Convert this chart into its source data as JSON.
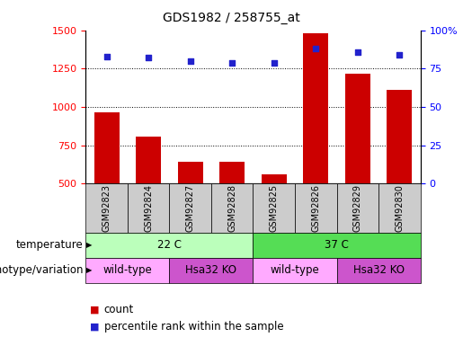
{
  "title": "GDS1982 / 258755_at",
  "samples": [
    "GSM92823",
    "GSM92824",
    "GSM92827",
    "GSM92828",
    "GSM92825",
    "GSM92826",
    "GSM92829",
    "GSM92830"
  ],
  "counts": [
    965,
    805,
    640,
    645,
    560,
    1480,
    1215,
    1110
  ],
  "percentiles": [
    83,
    82,
    80,
    79,
    79,
    88,
    86,
    84
  ],
  "ylim_left": [
    500,
    1500
  ],
  "ylim_right": [
    0,
    100
  ],
  "yticks_left": [
    500,
    750,
    1000,
    1250,
    1500
  ],
  "yticks_right": [
    0,
    25,
    50,
    75,
    100
  ],
  "ytick_labels_right": [
    "0",
    "25",
    "50",
    "75",
    "100%"
  ],
  "bar_color": "#cc0000",
  "scatter_color": "#2222cc",
  "hgrid_values": [
    750,
    1000,
    1250
  ],
  "temperature_groups": [
    {
      "label": "22 C",
      "start": 0,
      "end": 4,
      "color": "#bbffbb"
    },
    {
      "label": "37 C",
      "start": 4,
      "end": 8,
      "color": "#55dd55"
    }
  ],
  "genotype_groups": [
    {
      "label": "wild-type",
      "start": 0,
      "end": 2,
      "color": "#ffaaff"
    },
    {
      "label": "Hsa32 KO",
      "start": 2,
      "end": 4,
      "color": "#cc55cc"
    },
    {
      "label": "wild-type",
      "start": 4,
      "end": 6,
      "color": "#ffaaff"
    },
    {
      "label": "Hsa32 KO",
      "start": 6,
      "end": 8,
      "color": "#cc55cc"
    }
  ],
  "row_labels": [
    "temperature",
    "genotype/variation"
  ],
  "legend_count_label": "count",
  "legend_pct_label": "percentile rank within the sample",
  "sample_box_color": "#cccccc",
  "title_fontsize": 10,
  "tick_fontsize": 8,
  "label_fontsize": 8.5
}
